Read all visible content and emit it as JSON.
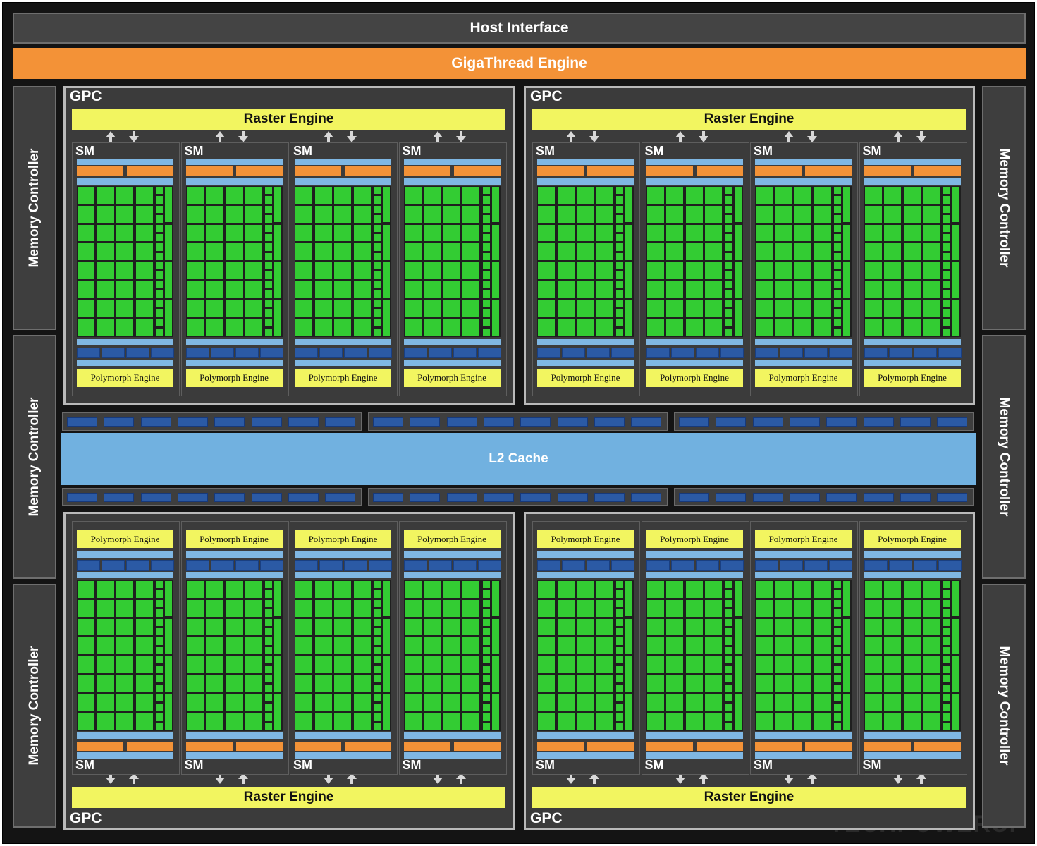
{
  "host_interface": "Host Interface",
  "gigathread_engine": "GigaThread Engine",
  "l2_cache": "L2 Cache",
  "memory_controller": "Memory Controller",
  "gpc_label": "GPC",
  "raster_engine": "Raster Engine",
  "sm_label": "SM",
  "polymorph_engine": "Polymorph Engine",
  "watermark": "TECHPOWERUP",
  "colors": {
    "gigathread": "#f39237",
    "raster": "#f2f560",
    "cuda_core": "#33cc33",
    "l2_cache": "#71b1e0",
    "dispatch": "#2b5aa5"
  },
  "structure": {
    "gpc_count": 4,
    "sm_per_gpc": 4,
    "memory_controllers": 6
  }
}
